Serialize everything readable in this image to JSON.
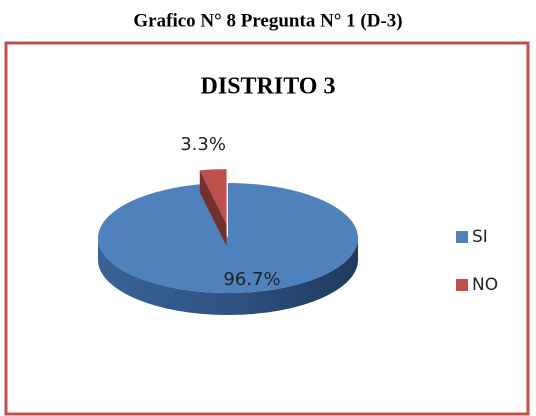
{
  "caption": "Grafico N° 8 Pregunta N° 1 (D-3)",
  "chart_data": {
    "type": "pie",
    "title": "DISTRITO 3",
    "categories": [
      "SI",
      "NO"
    ],
    "values": [
      96.7,
      3.3
    ],
    "value_labels": [
      "96.7%",
      "3.3%"
    ],
    "colors": [
      "#4f81bd",
      "#c0504d"
    ],
    "legend": "right"
  }
}
